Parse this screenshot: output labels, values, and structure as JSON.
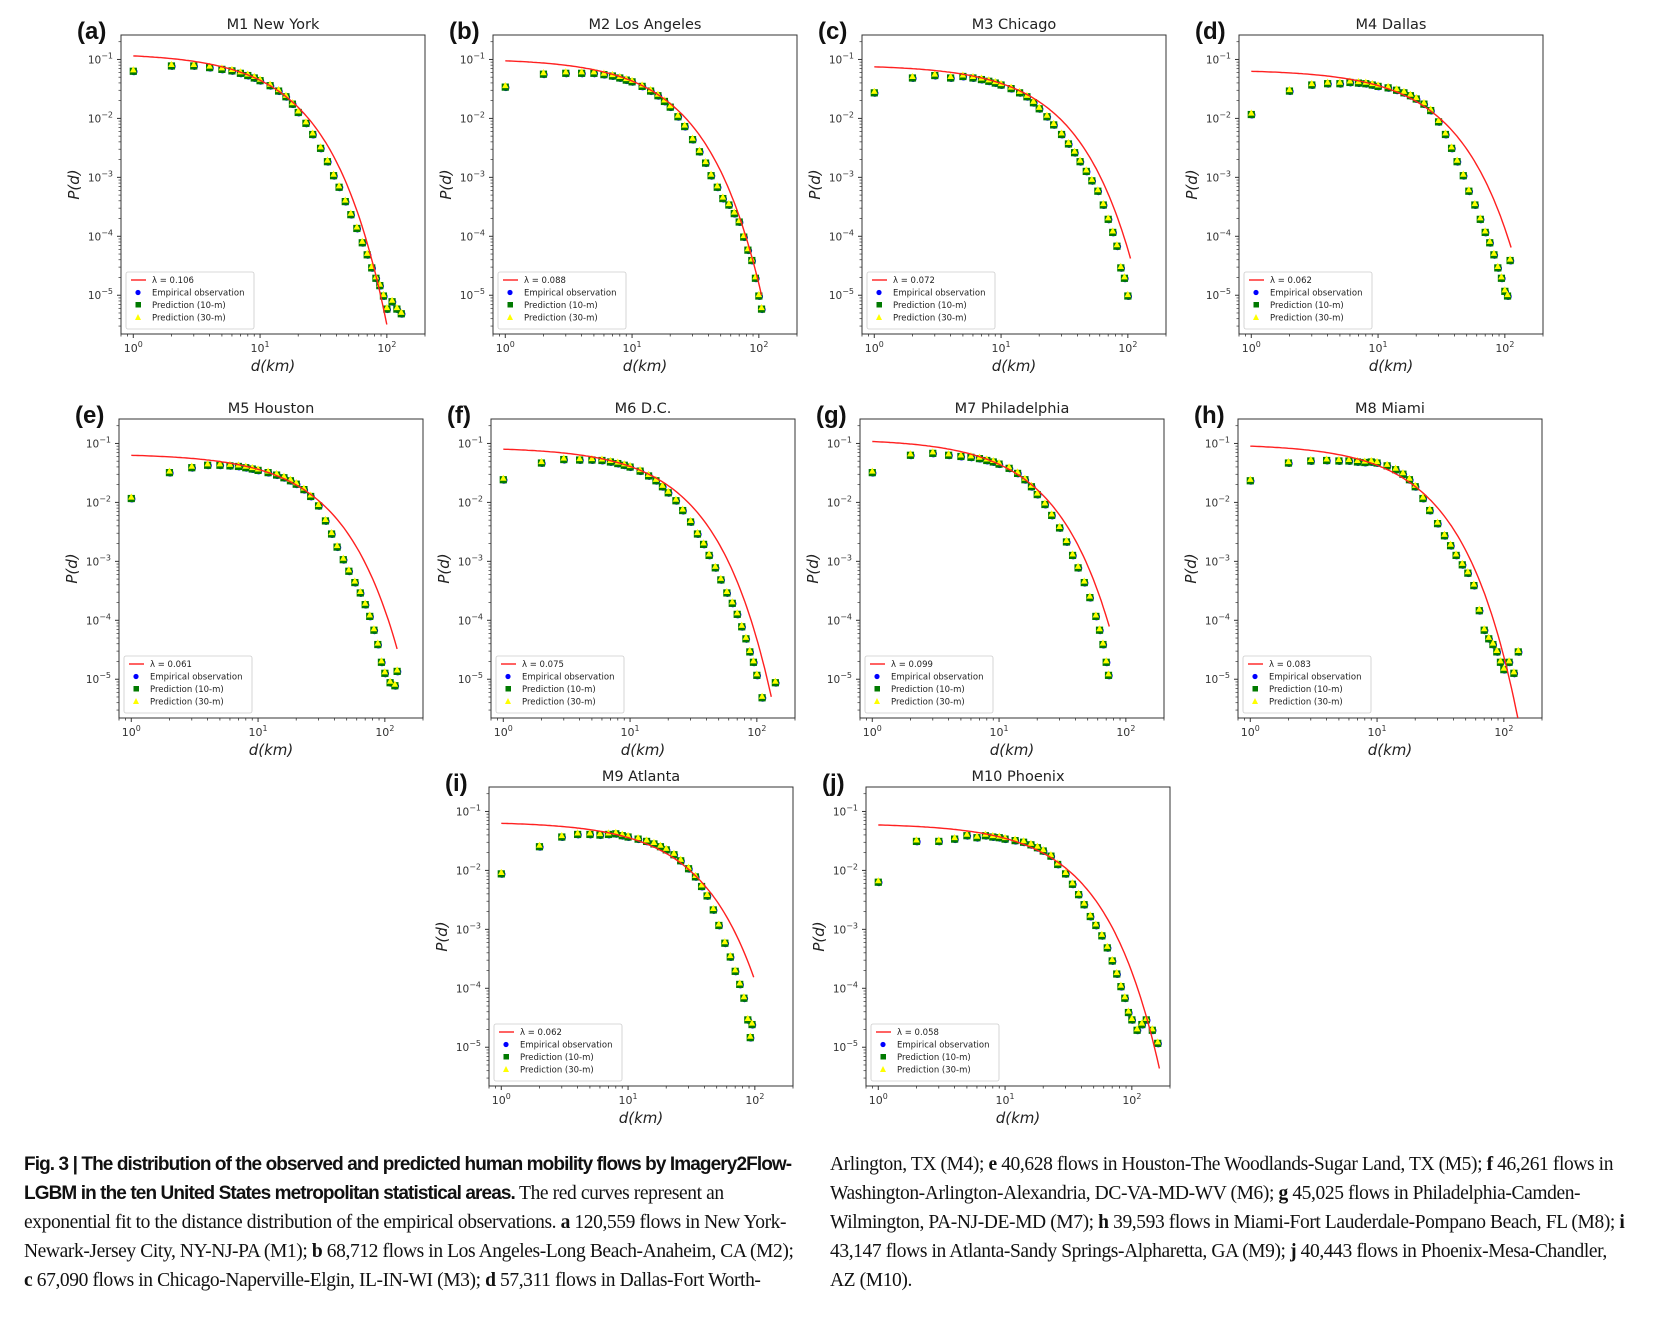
{
  "figure": {
    "legend_labels": {
      "empirical": "Empirical observation",
      "pred10": "Prediction (10-m)",
      "pred30": "Prediction (30-m)",
      "lambda_prefix": "λ = "
    },
    "colors": {
      "fit": "#ff2020",
      "empirical": "#0000ff",
      "pred10": "#007a00",
      "pred30": "#ffff00"
    }
  },
  "chart_data": [
    {
      "type": "scatter",
      "panel": "(a)",
      "title": "M1 New York",
      "xlabel": "d(km)",
      "ylabel": "P(d)",
      "xscale": "log",
      "yscale": "log",
      "xlim": [
        0.8,
        200
      ],
      "ylim": [
        2.2e-06,
        0.26
      ],
      "xticks": [
        "10^0",
        "10^1",
        "10^2"
      ],
      "yticks": [
        "10^-1",
        "10^-2",
        "10^-3",
        "10^-4",
        "10^-5"
      ],
      "lambda": "0.106",
      "fit_amp": 0.115,
      "fit_xmax": 100,
      "legend": "lower-left",
      "empirical": {
        "x": [
          1,
          2,
          3,
          4,
          5,
          6,
          7,
          8,
          9,
          10,
          12,
          14,
          16,
          18,
          20,
          23,
          26,
          30,
          34,
          38,
          42,
          47,
          52,
          58,
          64,
          70,
          76,
          82,
          88,
          94,
          100,
          110,
          120,
          130
        ],
        "y": [
          0.065,
          0.08,
          0.08,
          0.075,
          0.07,
          0.066,
          0.06,
          0.055,
          0.05,
          0.045,
          0.037,
          0.03,
          0.024,
          0.018,
          0.013,
          0.0085,
          0.0055,
          0.0032,
          0.0019,
          0.0011,
          0.0007,
          0.0004,
          0.00024,
          0.00014,
          8e-05,
          5e-05,
          3e-05,
          2e-05,
          1.5e-05,
          1e-05,
          6e-06,
          8e-06,
          6e-06,
          5e-06
        ]
      }
    },
    {
      "type": "scatter",
      "panel": "(b)",
      "title": "M2 Los Angeles",
      "xlabel": "d(km)",
      "ylabel": "P(d)",
      "xscale": "log",
      "yscale": "log",
      "xlim": [
        0.8,
        200
      ],
      "ylim": [
        2.2e-06,
        0.26
      ],
      "xticks": [
        "10^0",
        "10^1",
        "10^2"
      ],
      "yticks": [
        "10^-1",
        "10^-2",
        "10^-3",
        "10^-4",
        "10^-5"
      ],
      "lambda": "0.088",
      "fit_amp": 0.095,
      "fit_xmax": 105,
      "legend": "lower-left",
      "empirical": {
        "x": [
          1,
          2,
          3,
          4,
          5,
          6,
          7,
          8,
          9,
          10,
          12,
          14,
          16,
          18,
          20,
          23,
          26,
          30,
          34,
          38,
          42,
          47,
          52,
          58,
          64,
          70,
          76,
          82,
          88,
          94,
          100,
          105
        ],
        "y": [
          0.035,
          0.058,
          0.06,
          0.06,
          0.06,
          0.057,
          0.054,
          0.05,
          0.046,
          0.043,
          0.036,
          0.03,
          0.025,
          0.02,
          0.016,
          0.011,
          0.0075,
          0.0045,
          0.0028,
          0.0018,
          0.0011,
          0.0007,
          0.00045,
          0.00035,
          0.00025,
          0.00018,
          0.0001,
          6e-05,
          4e-05,
          2e-05,
          1e-05,
          6e-06
        ]
      }
    },
    {
      "type": "scatter",
      "panel": "(c)",
      "title": "M3 Chicago",
      "xlabel": "d(km)",
      "ylabel": "P(d)",
      "xscale": "log",
      "yscale": "log",
      "xlim": [
        0.8,
        200
      ],
      "ylim": [
        2.2e-06,
        0.26
      ],
      "xticks": [
        "10^0",
        "10^1",
        "10^2"
      ],
      "yticks": [
        "10^-1",
        "10^-2",
        "10^-3",
        "10^-4",
        "10^-5"
      ],
      "lambda": "0.072",
      "fit_amp": 0.075,
      "fit_xmax": 105,
      "legend": "lower-left",
      "empirical": {
        "x": [
          1,
          2,
          3,
          4,
          5,
          6,
          7,
          8,
          9,
          10,
          12,
          14,
          16,
          18,
          20,
          23,
          26,
          30,
          34,
          38,
          42,
          47,
          52,
          58,
          64,
          70,
          76,
          82,
          88,
          94,
          100
        ],
        "y": [
          0.028,
          0.05,
          0.055,
          0.05,
          0.053,
          0.05,
          0.047,
          0.044,
          0.041,
          0.038,
          0.033,
          0.028,
          0.024,
          0.019,
          0.015,
          0.011,
          0.008,
          0.0055,
          0.0038,
          0.0027,
          0.0019,
          0.0013,
          0.0009,
          0.0006,
          0.00035,
          0.0002,
          0.00012,
          7e-05,
          3e-05,
          2e-05,
          1e-05
        ]
      }
    },
    {
      "type": "scatter",
      "panel": "(d)",
      "title": "M4 Dallas",
      "xlabel": "d(km)",
      "ylabel": "P(d)",
      "xscale": "log",
      "yscale": "log",
      "xlim": [
        0.8,
        200
      ],
      "ylim": [
        2.2e-06,
        0.26
      ],
      "xticks": [
        "10^0",
        "10^1",
        "10^2"
      ],
      "yticks": [
        "10^-1",
        "10^-2",
        "10^-3",
        "10^-4",
        "10^-5"
      ],
      "lambda": "0.062",
      "fit_amp": 0.063,
      "fit_xmax": 112,
      "legend": "lower-left",
      "empirical": {
        "x": [
          1,
          2,
          3,
          4,
          5,
          6,
          7,
          8,
          9,
          10,
          12,
          14,
          16,
          18,
          20,
          23,
          26,
          30,
          34,
          38,
          42,
          47,
          52,
          58,
          64,
          70,
          76,
          82,
          88,
          94,
          100,
          105,
          110
        ],
        "y": [
          0.012,
          0.03,
          0.038,
          0.04,
          0.04,
          0.042,
          0.041,
          0.04,
          0.038,
          0.036,
          0.034,
          0.031,
          0.028,
          0.025,
          0.022,
          0.018,
          0.014,
          0.009,
          0.0055,
          0.0032,
          0.0019,
          0.0011,
          0.0006,
          0.00035,
          0.0002,
          0.00012,
          8e-05,
          5e-05,
          3e-05,
          2e-05,
          1.2e-05,
          1e-05,
          4e-05
        ]
      }
    },
    {
      "type": "scatter",
      "panel": "(e)",
      "title": "M5 Houston",
      "xlabel": "d(km)",
      "ylabel": "P(d)",
      "xscale": "log",
      "yscale": "log",
      "xlim": [
        0.8,
        200
      ],
      "ylim": [
        2.2e-06,
        0.26
      ],
      "xticks": [
        "10^0",
        "10^1",
        "10^2"
      ],
      "yticks": [
        "10^-1",
        "10^-2",
        "10^-3",
        "10^-4",
        "10^-5"
      ],
      "lambda": "0.061",
      "fit_amp": 0.063,
      "fit_xmax": 125,
      "legend": "lower-left",
      "empirical": {
        "x": [
          1,
          2,
          3,
          4,
          5,
          6,
          7,
          8,
          9,
          10,
          12,
          14,
          16,
          18,
          20,
          23,
          26,
          30,
          34,
          38,
          42,
          47,
          52,
          58,
          64,
          70,
          76,
          82,
          88,
          94,
          100,
          110,
          120,
          125
        ],
        "y": [
          0.012,
          0.033,
          0.04,
          0.044,
          0.044,
          0.043,
          0.042,
          0.04,
          0.038,
          0.036,
          0.033,
          0.03,
          0.027,
          0.024,
          0.021,
          0.017,
          0.013,
          0.009,
          0.005,
          0.003,
          0.0018,
          0.0011,
          0.0007,
          0.00045,
          0.0003,
          0.00019,
          0.00012,
          7e-05,
          4e-05,
          2e-05,
          1.3e-05,
          9e-06,
          8e-06,
          1.4e-05
        ]
      }
    },
    {
      "type": "scatter",
      "panel": "(f)",
      "title": "M6 D.C.",
      "xlabel": "d(km)",
      "ylabel": "P(d)",
      "xscale": "log",
      "yscale": "log",
      "xlim": [
        0.8,
        200
      ],
      "ylim": [
        2.2e-06,
        0.26
      ],
      "xticks": [
        "10^0",
        "10^1",
        "10^2"
      ],
      "yticks": [
        "10^-1",
        "10^-2",
        "10^-3",
        "10^-4",
        "10^-5"
      ],
      "lambda": "0.075",
      "fit_amp": 0.08,
      "fit_xmax": 130,
      "legend": "lower-left",
      "empirical": {
        "x": [
          1,
          2,
          3,
          4,
          5,
          6,
          7,
          8,
          9,
          10,
          12,
          14,
          16,
          18,
          20,
          23,
          26,
          30,
          34,
          38,
          42,
          47,
          52,
          58,
          64,
          70,
          76,
          82,
          88,
          94,
          100,
          110,
          140
        ],
        "y": [
          0.025,
          0.048,
          0.055,
          0.054,
          0.054,
          0.053,
          0.05,
          0.047,
          0.044,
          0.041,
          0.035,
          0.029,
          0.024,
          0.019,
          0.015,
          0.011,
          0.0075,
          0.0048,
          0.003,
          0.002,
          0.0013,
          0.0008,
          0.0005,
          0.0003,
          0.0002,
          0.00013,
          8e-05,
          5e-05,
          3e-05,
          2e-05,
          1.2e-05,
          5e-06,
          9e-06
        ]
      }
    },
    {
      "type": "scatter",
      "panel": "(g)",
      "title": "M7 Philadelphia",
      "xlabel": "d(km)",
      "ylabel": "P(d)",
      "xscale": "log",
      "yscale": "log",
      "xlim": [
        0.8,
        200
      ],
      "ylim": [
        2.2e-06,
        0.26
      ],
      "xticks": [
        "10^0",
        "10^1",
        "10^2"
      ],
      "yticks": [
        "10^-1",
        "10^-2",
        "10^-3",
        "10^-4",
        "10^-5"
      ],
      "lambda": "0.099",
      "fit_amp": 0.108,
      "fit_xmax": 74,
      "legend": "lower-left",
      "empirical": {
        "x": [
          1,
          2,
          3,
          4,
          5,
          6,
          7,
          8,
          9,
          10,
          12,
          14,
          16,
          18,
          20,
          23,
          26,
          30,
          34,
          38,
          42,
          47,
          52,
          58,
          62,
          66,
          70,
          73
        ],
        "y": [
          0.033,
          0.065,
          0.07,
          0.065,
          0.062,
          0.06,
          0.057,
          0.053,
          0.05,
          0.046,
          0.039,
          0.032,
          0.025,
          0.019,
          0.014,
          0.0095,
          0.0062,
          0.0038,
          0.0022,
          0.0013,
          0.0008,
          0.00045,
          0.00025,
          0.00012,
          7e-05,
          4e-05,
          2e-05,
          1.2e-05
        ]
      }
    },
    {
      "type": "scatter",
      "panel": "(h)",
      "title": "M8 Miami",
      "xlabel": "d(km)",
      "ylabel": "P(d)",
      "xscale": "log",
      "yscale": "log",
      "xlim": [
        0.8,
        200
      ],
      "ylim": [
        2.2e-06,
        0.26
      ],
      "xticks": [
        "10^0",
        "10^1",
        "10^2"
      ],
      "yticks": [
        "10^-1",
        "10^-2",
        "10^-3",
        "10^-4",
        "10^-5"
      ],
      "lambda": "0.083",
      "fit_amp": 0.09,
      "fit_xmax": 130,
      "legend": "lower-left",
      "empirical": {
        "x": [
          1,
          2,
          3,
          4,
          5,
          6,
          7,
          8,
          9,
          10,
          12,
          14,
          16,
          18,
          20,
          23,
          26,
          30,
          34,
          38,
          42,
          47,
          52,
          58,
          64,
          70,
          76,
          82,
          88,
          94,
          100,
          110,
          120,
          130
        ],
        "y": [
          0.024,
          0.048,
          0.052,
          0.053,
          0.052,
          0.052,
          0.05,
          0.049,
          0.05,
          0.048,
          0.043,
          0.037,
          0.031,
          0.025,
          0.019,
          0.012,
          0.0075,
          0.0045,
          0.0028,
          0.0019,
          0.0013,
          0.0009,
          0.00065,
          0.0004,
          0.00015,
          7e-05,
          5e-05,
          4e-05,
          3e-05,
          2e-05,
          1.5e-05,
          2e-05,
          1.3e-05,
          3e-05
        ]
      }
    },
    {
      "type": "scatter",
      "panel": "(i)",
      "title": "M9 Atlanta",
      "xlabel": "d(km)",
      "ylabel": "P(d)",
      "xscale": "log",
      "yscale": "log",
      "xlim": [
        0.8,
        200
      ],
      "ylim": [
        2.2e-06,
        0.26
      ],
      "xticks": [
        "10^0",
        "10^1",
        "10^2"
      ],
      "yticks": [
        "10^-1",
        "10^-2",
        "10^-3",
        "10^-4",
        "10^-5"
      ],
      "lambda": "0.062",
      "fit_amp": 0.063,
      "fit_xmax": 98,
      "legend": "lower-left",
      "empirical": {
        "x": [
          1,
          2,
          3,
          4,
          5,
          6,
          7,
          8,
          9,
          10,
          12,
          14,
          16,
          18,
          20,
          23,
          26,
          30,
          34,
          38,
          42,
          47,
          52,
          58,
          64,
          70,
          76,
          82,
          88,
          92,
          95
        ],
        "y": [
          0.009,
          0.026,
          0.038,
          0.042,
          0.042,
          0.041,
          0.042,
          0.043,
          0.04,
          0.038,
          0.035,
          0.032,
          0.029,
          0.026,
          0.023,
          0.019,
          0.015,
          0.011,
          0.008,
          0.0055,
          0.0038,
          0.0022,
          0.0012,
          0.0006,
          0.00035,
          0.0002,
          0.00012,
          7e-05,
          3e-05,
          1.5e-05,
          2.5e-05
        ]
      }
    },
    {
      "type": "scatter",
      "panel": "(j)",
      "title": "M10 Phoenix",
      "xlabel": "d(km)",
      "ylabel": "P(d)",
      "xscale": "log",
      "yscale": "log",
      "xlim": [
        0.8,
        200
      ],
      "ylim": [
        2.2e-06,
        0.26
      ],
      "xticks": [
        "10^0",
        "10^1",
        "10^2"
      ],
      "yticks": [
        "10^-1",
        "10^-2",
        "10^-3",
        "10^-4",
        "10^-5"
      ],
      "lambda": "0.058",
      "fit_amp": 0.059,
      "fit_xmax": 165,
      "legend": "lower-left",
      "empirical": {
        "x": [
          1,
          2,
          3,
          4,
          5,
          6,
          7,
          8,
          9,
          10,
          12,
          14,
          16,
          18,
          20,
          23,
          26,
          30,
          34,
          38,
          42,
          47,
          52,
          58,
          64,
          70,
          76,
          82,
          88,
          94,
          100,
          110,
          120,
          130,
          145,
          160
        ],
        "y": [
          0.0065,
          0.032,
          0.032,
          0.035,
          0.04,
          0.037,
          0.04,
          0.038,
          0.037,
          0.035,
          0.033,
          0.031,
          0.028,
          0.025,
          0.022,
          0.018,
          0.013,
          0.009,
          0.006,
          0.004,
          0.0027,
          0.0017,
          0.0012,
          0.0008,
          0.0005,
          0.0003,
          0.00018,
          0.00011,
          7e-05,
          4e-05,
          3e-05,
          2e-05,
          2.5e-05,
          3e-05,
          2e-05,
          1.2e-05
        ]
      }
    }
  ],
  "caption": {
    "fig_label": "Fig. 3 | ",
    "title": "The distribution of the observed and predicted human mobility flows by Imagery2Flow-LGBM in the ten United States metropolitan statistical areas.",
    "intro": " The red curves represent an exponential fit to the distance distribution of the empirical observations. ",
    "items": [
      {
        "letter": "a",
        "text": " 120,559 flows in New York-Newark-Jersey City, NY-NJ-PA (M1); "
      },
      {
        "letter": "b",
        "text": " 68,712 flows in Los Angeles-Long Beach-Anaheim, CA (M2); "
      },
      {
        "letter": "c",
        "text": " 67,090 flows in Chicago-Naperville-Elgin, IL-IN-WI (M3); "
      },
      {
        "letter": "d",
        "text": " 57,311 flows in Dallas-Fort Worth-"
      }
    ],
    "right_lead": "Arlington, TX (M4); ",
    "right_items": [
      {
        "letter": "e",
        "text": " 40,628 flows in Houston-The Woodlands-Sugar Land, TX (M5); "
      },
      {
        "letter": "f",
        "text": " 46,261 flows in Washington-Arlington-Alexandria, DC-VA-MD-WV (M6); "
      },
      {
        "letter": "g",
        "text": " 45,025 flows in Philadelphia-Camden-Wilmington, PA-NJ-DE-MD (M7); "
      },
      {
        "letter": "h",
        "text": " 39,593 flows in Miami-Fort Lauderdale-Pompano Beach, FL (M8); "
      },
      {
        "letter": "i",
        "text": " 43,147 flows in Atlanta-Sandy Springs-Alpharetta, GA (M9); "
      },
      {
        "letter": "j",
        "text": " 40,443 flows in Phoenix-Mesa-Chandler, AZ (M10)."
      }
    ]
  }
}
